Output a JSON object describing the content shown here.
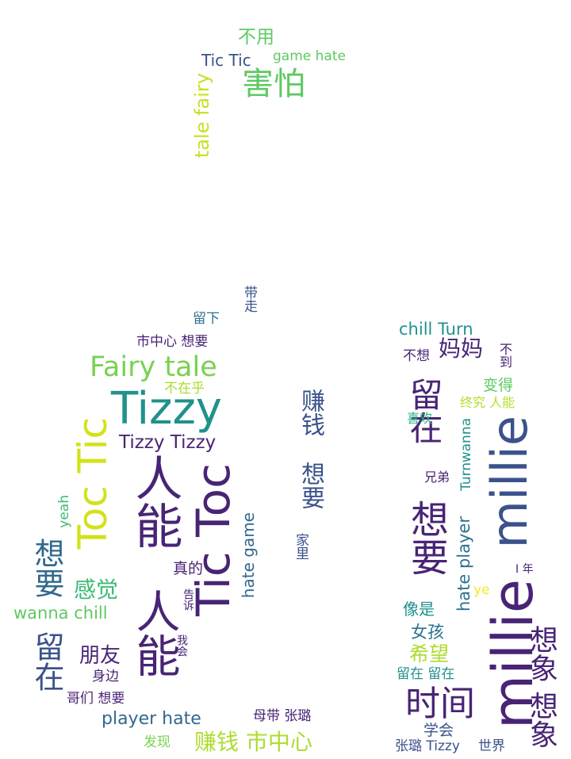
{
  "palette": {
    "dark_purple": "#482475",
    "indigo": "#3b528b",
    "blue": "#2c728e",
    "teal": "#21918c",
    "green": "#28ae80",
    "light_green": "#5ec962",
    "yellow_green": "#addc30",
    "yellow": "#e5e419"
  },
  "words": [
    {
      "text": "不用",
      "color": "#5ec962"
    },
    {
      "text": "Tic Tic",
      "color": "#3b528b"
    },
    {
      "text": "game hate",
      "color": "#5ec962"
    },
    {
      "text": "害怕",
      "color": "#5ec962"
    },
    {
      "text": "tale fairy",
      "color": "#c8e020"
    },
    {
      "text": "带走",
      "color": "#3b528b"
    },
    {
      "text": "留下",
      "color": "#2c728e"
    },
    {
      "text": "市中心 想要",
      "color": "#482475"
    },
    {
      "text": "Fairy tale",
      "color": "#7ad151"
    },
    {
      "text": "不在乎",
      "color": "#addc30"
    },
    {
      "text": "Tizzy",
      "color": "#21918c"
    },
    {
      "text": "Tizzy Tizzy",
      "color": "#482475"
    },
    {
      "text": "Toc Tic",
      "color": "#d2e21b"
    },
    {
      "text": "人能",
      "color": "#482475"
    },
    {
      "text": "Tic Toc",
      "color": "#482475"
    },
    {
      "text": "赚钱",
      "color": "#3b528b"
    },
    {
      "text": "想要",
      "color": "#3b528b"
    },
    {
      "text": "家里",
      "color": "#3b528b"
    },
    {
      "text": "hate game",
      "color": "#31688e"
    },
    {
      "text": "真的",
      "color": "#482475"
    },
    {
      "text": "yeah",
      "color": "#3cbb75"
    },
    {
      "text": "想要",
      "color": "#31688e"
    },
    {
      "text": "感觉",
      "color": "#3cbb75"
    },
    {
      "text": "wanna chill",
      "color": "#5ec962"
    },
    {
      "text": "留在",
      "color": "#3b528b"
    },
    {
      "text": "朋友",
      "color": "#482475"
    },
    {
      "text": "告诉",
      "color": "#482475"
    },
    {
      "text": "我会",
      "color": "#482475"
    },
    {
      "text": "身边",
      "color": "#482475"
    },
    {
      "text": "人能",
      "color": "#482475"
    },
    {
      "text": "哥们 想要",
      "color": "#482475"
    },
    {
      "text": "player hate",
      "color": "#31688e"
    },
    {
      "text": "母带 张璐",
      "color": "#482475"
    },
    {
      "text": "发现",
      "color": "#7ad151"
    },
    {
      "text": "赚钱 市中心",
      "color": "#addc30"
    },
    {
      "text": "chill Turn",
      "color": "#21918c"
    },
    {
      "text": "不想",
      "color": "#482475"
    },
    {
      "text": "妈妈",
      "color": "#482475"
    },
    {
      "text": "不到",
      "color": "#482475"
    },
    {
      "text": "留在",
      "color": "#482475"
    },
    {
      "text": "变得",
      "color": "#5ec962"
    },
    {
      "text": "终究 人能",
      "color": "#b5de2b"
    },
    {
      "text": "喜欢",
      "color": "#28ae80"
    },
    {
      "text": "millie",
      "color": "#3b528b"
    },
    {
      "text": "wanna",
      "color": "#21918c"
    },
    {
      "text": "Turn",
      "color": "#21918c"
    },
    {
      "text": "兄弟",
      "color": "#482475"
    },
    {
      "text": "想要",
      "color": "#482475"
    },
    {
      "text": "hate player",
      "color": "#2c728e"
    },
    {
      "text": "I 年",
      "color": "#482475"
    },
    {
      "text": "ye",
      "color": "#fde725"
    },
    {
      "text": "像是",
      "color": "#21918c"
    },
    {
      "text": "女孩",
      "color": "#2c728e"
    },
    {
      "text": "希望",
      "color": "#addc30"
    },
    {
      "text": "millie",
      "color": "#482475"
    },
    {
      "text": "想象 想象",
      "color": "#482475"
    },
    {
      "text": "留在 留在",
      "color": "#21918c"
    },
    {
      "text": "时间",
      "color": "#482475"
    },
    {
      "text": "学会",
      "color": "#3b528b"
    },
    {
      "text": "张璐 Tizzy",
      "color": "#3b528b"
    },
    {
      "text": "世界",
      "color": "#3b528b"
    }
  ]
}
